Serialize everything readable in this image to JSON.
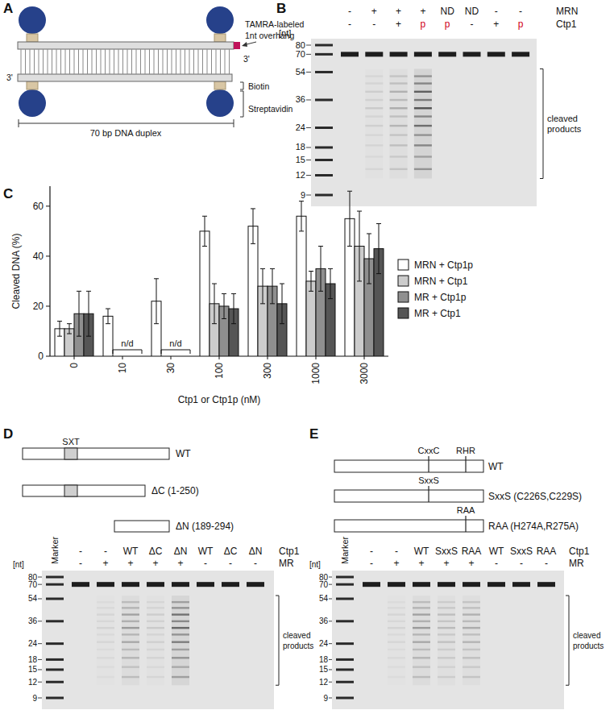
{
  "figure": {
    "panel_labels": [
      "A",
      "B",
      "C",
      "D",
      "E"
    ]
  },
  "panel_a": {
    "tamra_label": "TAMRA-labeled",
    "overhang_label": "1nt overhang",
    "three_prime": "3'",
    "biotin_label": "Biotin",
    "streptavidin_label": "Streptavidin",
    "duplex_label": "70 bp DNA duplex"
  },
  "panel_b": {
    "unit_label": "[nt]",
    "markers": [
      80,
      70,
      54,
      36,
      24,
      18,
      15,
      12,
      9
    ],
    "rows": [
      {
        "name": "MRN",
        "lanes": [
          "-",
          "+",
          "+",
          "+",
          "ND",
          "ND",
          "-",
          "-"
        ]
      },
      {
        "name": "Ctp1",
        "lanes": [
          "-",
          "-",
          "+",
          "p",
          "p",
          "-",
          "+",
          "p"
        ],
        "colors": [
          "#111111",
          "#111111",
          "#111111",
          "#d0021b",
          "#d0021b",
          "#111111",
          "#111111",
          "#d0021b"
        ]
      }
    ],
    "bracket_label": "cleaved products"
  },
  "chart_data": {
    "type": "bar",
    "categories": [
      "0",
      "10",
      "30",
      "100",
      "300",
      "1000",
      "3000"
    ],
    "x_label": "Ctp1 or Ctp1p (nM)",
    "y_label": "Cleaved DNA (%)",
    "ylim": [
      0,
      68
    ],
    "yticks": [
      0,
      20,
      40,
      60
    ],
    "legend": "right",
    "series": [
      {
        "name": "MRN + Ctp1p",
        "color": "#ffffff",
        "values": [
          11,
          16,
          22,
          50,
          52,
          56,
          55
        ],
        "errors": [
          3,
          3,
          9,
          6,
          7,
          6,
          11
        ]
      },
      {
        "name": "MRN + Ctp1",
        "color": "#cccccc",
        "values": [
          11,
          null,
          null,
          21,
          28,
          30,
          44
        ],
        "errors": [
          2,
          null,
          null,
          8,
          7,
          4,
          14
        ]
      },
      {
        "name": "MR + Ctp1p",
        "color": "#8f8f8f",
        "values": [
          17,
          null,
          null,
          20,
          28,
          35,
          39
        ],
        "errors": [
          9,
          null,
          null,
          5,
          7,
          9,
          10
        ]
      },
      {
        "name": "MR + Ctp1",
        "color": "#555555",
        "values": [
          17,
          null,
          null,
          19,
          21,
          29,
          43
        ],
        "errors": [
          9,
          null,
          null,
          6,
          8,
          6,
          10
        ]
      }
    ],
    "annotations": [
      {
        "text": "n/d",
        "x": "10"
      },
      {
        "text": "n/d",
        "x": "30"
      }
    ]
  },
  "panel_d": {
    "constructs": [
      {
        "label": "WT",
        "motifs": [
          "SXT"
        ]
      },
      {
        "label": "ΔC (1-250)"
      },
      {
        "label": "ΔN (189-294)"
      }
    ],
    "gel": {
      "marker_label": "Marker",
      "unit_label": "[nt]",
      "markers": [
        80,
        70,
        54,
        36,
        24,
        18,
        15,
        12,
        9
      ],
      "rows": [
        {
          "name": "Ctp1",
          "lanes": [
            "-",
            "-",
            "WT",
            "ΔC",
            "ΔN",
            "WT",
            "ΔC",
            "ΔN"
          ]
        },
        {
          "name": "MR",
          "lanes": [
            "-",
            "+",
            "+",
            "+",
            "+",
            "-",
            "-",
            "-"
          ]
        }
      ],
      "bracket_label": "cleaved products"
    }
  },
  "panel_e": {
    "constructs": [
      {
        "label": "WT",
        "motifs": [
          "CxxC",
          "RHR"
        ]
      },
      {
        "label": "SxxS (C226S,C229S)",
        "motifs": [
          "SxxS"
        ]
      },
      {
        "label": "RAA (H274A,R275A)",
        "motifs": [
          "RAA"
        ]
      }
    ],
    "gel": {
      "marker_label": "Marker",
      "unit_label": "[nt]",
      "markers": [
        80,
        70,
        54,
        36,
        24,
        18,
        15,
        12,
        9
      ],
      "rows": [
        {
          "name": "Ctp1",
          "lanes": [
            "-",
            "-",
            "WT",
            "SxxS",
            "RAA",
            "WT",
            "SxxS",
            "RAA"
          ]
        },
        {
          "name": "MR",
          "lanes": [
            "-",
            "+",
            "+",
            "+",
            "+",
            "-",
            "-",
            "-"
          ]
        }
      ],
      "bracket_label": "cleaved products"
    }
  }
}
